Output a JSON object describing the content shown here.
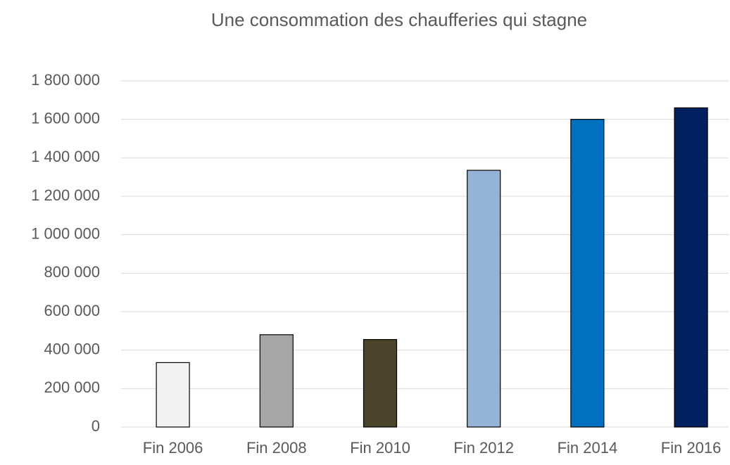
{
  "chart_data": {
    "type": "bar",
    "title": "Une consommation des chaufferies qui stagne",
    "categories": [
      "Fin 2006",
      "Fin 2008",
      "Fin 2010",
      "Fin 2012",
      "Fin 2014",
      "Fin 2016"
    ],
    "values": [
      335000,
      480000,
      455000,
      1335000,
      1600000,
      1660000
    ],
    "colors": [
      "#f2f2f2",
      "#a6a6a6",
      "#4a452a",
      "#95b3d7",
      "#0070c0",
      "#002060"
    ],
    "ylim": [
      0,
      1800000
    ],
    "yticks": [
      0,
      {
        "value": 200000,
        "label": "200 000"
      },
      {
        "value": 400000,
        "label": "400 000"
      },
      {
        "value": 600000,
        "label": "600 000"
      },
      {
        "value": 800000,
        "label": "800 000"
      },
      {
        "value": 1000000,
        "label": "1 000 000"
      },
      {
        "value": 1200000,
        "label": "1 200 000"
      },
      {
        "value": 1400000,
        "label": "1 400 000"
      },
      {
        "value": 1600000,
        "label": "1 600 000"
      },
      {
        "value": 1800000,
        "label": "1 800 000"
      }
    ],
    "grid": true
  }
}
